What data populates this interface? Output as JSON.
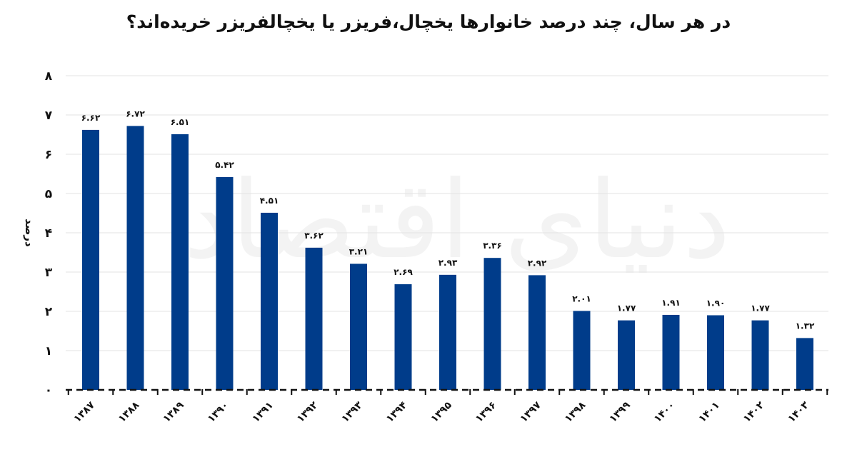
{
  "chart_data": {
    "type": "bar",
    "title": "در هر سال، چند درصد خانوارها یخچال،فریزر یا یخچالفریزر خریده‌اند؟",
    "ylabel": "درصد",
    "xlabel": "",
    "categories": [
      "۱۳۸۷",
      "۱۳۸۸",
      "۱۳۸۹",
      "۱۳۹۰",
      "۱۳۹۱",
      "۱۳۹۲",
      "۱۳۹۳",
      "۱۳۹۴",
      "۱۳۹۵",
      "۱۳۹۶",
      "۱۳۹۷",
      "۱۳۹۸",
      "۱۳۹۹",
      "۱۴۰۰",
      "۱۴۰۱",
      "۱۴۰۲",
      "۱۴۰۳"
    ],
    "values": [
      6.62,
      6.72,
      6.51,
      5.42,
      4.51,
      3.62,
      3.21,
      2.69,
      2.93,
      3.36,
      2.92,
      2.01,
      1.77,
      1.91,
      1.9,
      1.77,
      1.32
    ],
    "value_labels": [
      "۶.۶۲",
      "۶.۷۲",
      "۶.۵۱",
      "۵.۴۲",
      "۴.۵۱",
      "۳.۶۲",
      "۳.۲۱",
      "۲.۶۹",
      "۲.۹۳",
      "۳.۳۶",
      "۲.۹۲",
      "۲.۰۱",
      "۱.۷۷",
      "۱.۹۱",
      "۱.۹۰",
      "۱.۷۷",
      "۱.۳۲"
    ],
    "yticks": [
      0,
      1,
      2,
      3,
      4,
      5,
      6,
      7,
      8
    ],
    "ytick_labels": [
      "۰",
      "۱",
      "۲",
      "۳",
      "۴",
      "۵",
      "۶",
      "۷",
      "۸"
    ],
    "ylim": [
      0,
      8
    ],
    "grid": true,
    "legend": "none",
    "bar_color": "#003c8a",
    "grid_color": "#e3e3e3"
  },
  "watermark": "دنیای اقتصاد"
}
